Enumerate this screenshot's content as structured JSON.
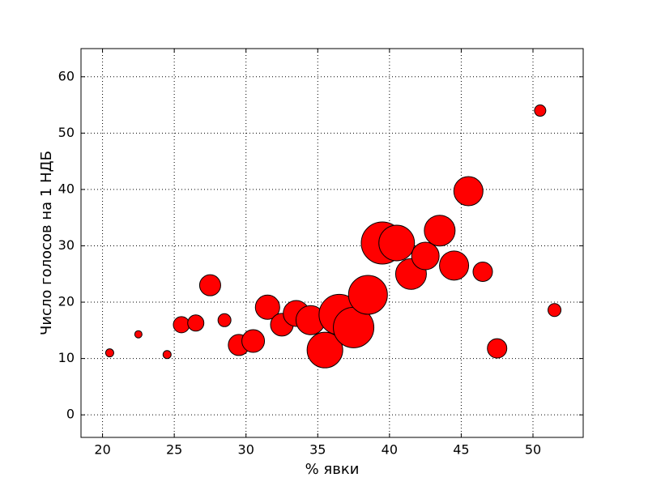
{
  "chart_data": {
    "type": "scatter",
    "xlabel": "% явки",
    "ylabel": "Число голосов на 1 НДБ",
    "x": [
      20.5,
      22.5,
      24.5,
      25.5,
      26.5,
      27.5,
      28.5,
      29.5,
      30.5,
      31.5,
      32.5,
      33.5,
      34.5,
      35.5,
      36.5,
      37.5,
      38.5,
      39.5,
      40.5,
      41.5,
      42.5,
      43.5,
      44.5,
      45.5,
      46.5,
      47.5,
      50.5,
      51.5
    ],
    "series": [
      {
        "color": "#ff0000",
        "values": [
          11,
          14.3,
          10.7,
          16,
          16.3,
          23,
          16.8,
          12.4,
          13.1,
          19.1,
          16,
          18,
          16.8,
          11.5,
          17.8,
          15.5,
          21.3,
          30.5,
          30.5,
          25,
          28.2,
          32.7,
          26.5,
          39.7,
          25.4,
          11.8,
          54,
          18.6
        ],
        "sizes": [
          5,
          4.5,
          5,
          10,
          10,
          13,
          8,
          13,
          14,
          15,
          14,
          16,
          18,
          22,
          25,
          25,
          24,
          26,
          22,
          19,
          17,
          19,
          18,
          18,
          12,
          12,
          7,
          8
        ]
      }
    ],
    "xlim": [
      18.5,
      53.5
    ],
    "ylim": [
      -4,
      65
    ],
    "xticks": [
      20,
      25,
      30,
      35,
      40,
      45,
      50
    ],
    "yticks": [
      0,
      10,
      20,
      30,
      40,
      50,
      60
    ],
    "grid": true
  }
}
